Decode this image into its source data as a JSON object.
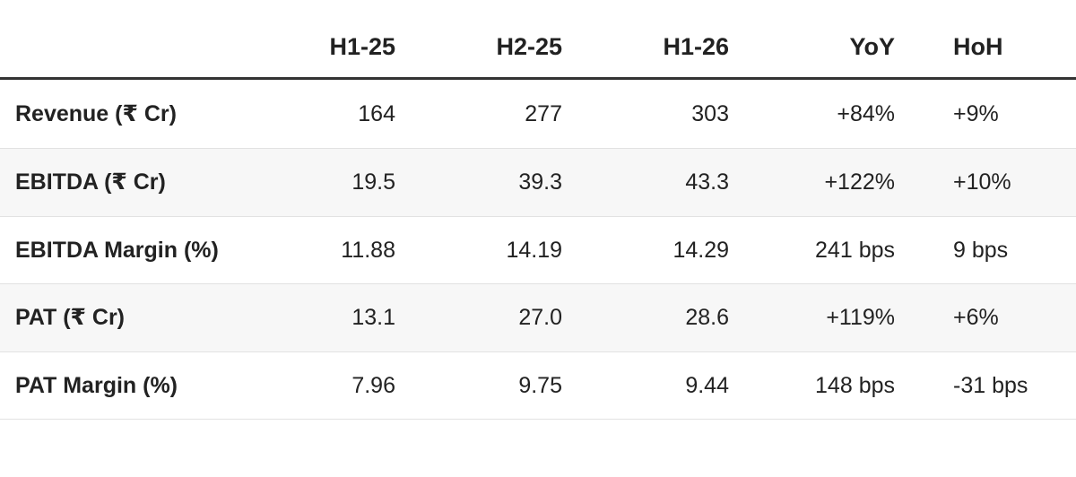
{
  "table": {
    "header": [
      "H1-25",
      "H2-25",
      "H1-26",
      "YoY",
      "HoH"
    ],
    "rows": [
      {
        "label": "Revenue (₹ Cr)",
        "cells": [
          "164",
          "277",
          "303",
          "+84%",
          "+9%"
        ]
      },
      {
        "label": "EBITDA (₹ Cr)",
        "cells": [
          "19.5",
          "39.3",
          "43.3",
          "+122%",
          "+10%"
        ]
      },
      {
        "label": "EBITDA Margin (%)",
        "cells": [
          "11.88",
          "14.19",
          "14.29",
          "241 bps",
          "9 bps"
        ]
      },
      {
        "label": "PAT (₹ Cr)",
        "cells": [
          "13.1",
          "27.0",
          "28.6",
          "+119%",
          "+6%"
        ]
      },
      {
        "label": "PAT Margin (%)",
        "cells": [
          "7.96",
          "9.75",
          "9.44",
          "148 bps",
          "-31 bps"
        ]
      }
    ]
  }
}
